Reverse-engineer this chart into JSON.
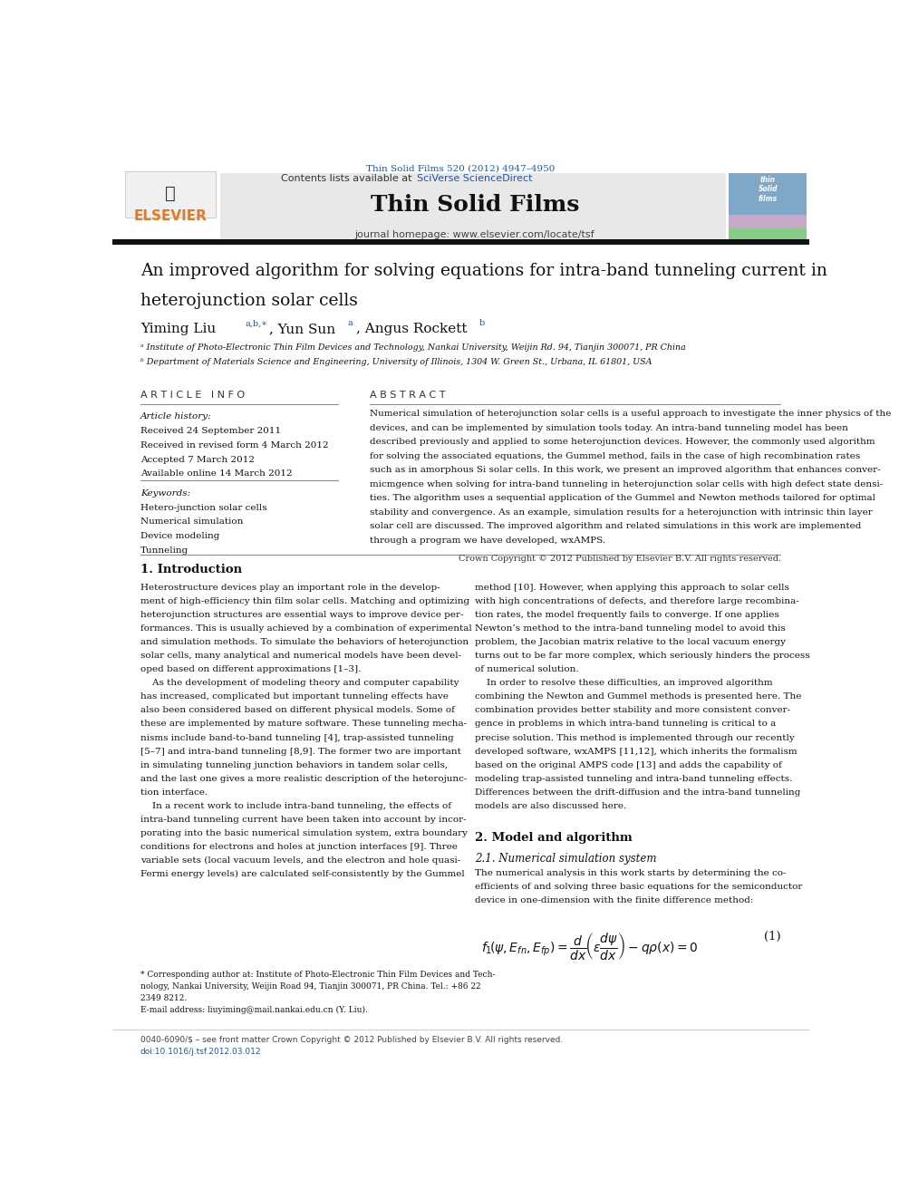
{
  "page_width": 9.92,
  "page_height": 13.23,
  "bg_color": "#ffffff",
  "top_journal_ref": "Thin Solid Films 520 (2012) 4947–4950",
  "journal_name": "Thin Solid Films",
  "journal_homepage": "journal homepage: www.elsevier.com/locate/tsf",
  "contents_line": "Contents lists available at SciVerse ScienceDirect",
  "elsevier_text": "ELSEVIER",
  "elsevier_color": "#e87722",
  "link_color": "#2255aa",
  "title_line1": "An improved algorithm for solving equations for intra-band tunneling current in",
  "title_line2": "heterojunction solar cells",
  "affil_a": "ᵃ Institute of Photo-Electronic Thin Film Devices and Technology, Nankai University, Weijin Rd. 94, Tianjin 300071, PR China",
  "affil_b": "ᵇ Department of Materials Science and Engineering, University of Illinois, 1304 W. Green St., Urbana, IL 61801, USA",
  "article_info_header": "A R T I C L E   I N F O",
  "abstract_header": "A B S T R A C T",
  "article_history_label": "Article history:",
  "received1": "Received 24 September 2011",
  "received2": "Received in revised form 4 March 2012",
  "accepted": "Accepted 7 March 2012",
  "available": "Available online 14 March 2012",
  "keywords_label": "Keywords:",
  "keyword1": "Hetero-junction solar cells",
  "keyword2": "Numerical simulation",
  "keyword3": "Device modeling",
  "keyword4": "Tunneling",
  "copyright": "Crown Copyright © 2012 Published by Elsevier B.V. All rights reserved.",
  "intro_header": "1. Introduction",
  "section2_header": "2. Model and algorithm",
  "section21_header": "2.1. Numerical simulation system",
  "footer1": "0040-6090/$ – see front matter Crown Copyright © 2012 Published by Elsevier B.V. All rights reserved.",
  "footer2": "doi:10.1016/j.tsf.2012.03.012",
  "header_bg": "#e8e8e8",
  "thin_films_cover_blue": "#7fa8c8",
  "thin_films_cover_purple": "#c8a8c8",
  "thin_films_cover_green": "#88cc88",
  "abstract_lines": [
    "Numerical simulation of heterojunction solar cells is a useful approach to investigate the inner physics of the",
    "devices, and can be implemented by simulation tools today. An intra-band tunneling model has been",
    "described previously and applied to some heterojunction devices. However, the commonly used algorithm",
    "for solving the associated equations, the Gummel method, fails in the case of high recombination rates",
    "such as in amorphous Si solar cells. In this work, we present an improved algorithm that enhances conver-",
    "micmgence when solving for intra-band tunneling in heterojunction solar cells with high defect state densi-",
    "ties. The algorithm uses a sequential application of the Gummel and Newton methods tailored for optimal",
    "stability and convergence. As an example, simulation results for a heterojunction with intrinsic thin layer",
    "solar cell are discussed. The improved algorithm and related simulations in this work are implemented",
    "through a program we have developed, wxAMPS."
  ],
  "col1_lines": [
    "Heterostructure devices play an important role in the develop-",
    "ment of high-efficiency thin film solar cells. Matching and optimizing",
    "heterojunction structures are essential ways to improve device per-",
    "formances. This is usually achieved by a combination of experimental",
    "and simulation methods. To simulate the behaviors of heterojunction",
    "solar cells, many analytical and numerical models have been devel-",
    "oped based on different approximations [1–3].",
    "    As the development of modeling theory and computer capability",
    "has increased, complicated but important tunneling effects have",
    "also been considered based on different physical models. Some of",
    "these are implemented by mature software. These tunneling mecha-",
    "nisms include band-to-band tunneling [4], trap-assisted tunneling",
    "[5–7] and intra-band tunneling [8,9]. The former two are important",
    "in simulating tunneling junction behaviors in tandem solar cells,",
    "and the last one gives a more realistic description of the heterojunc-",
    "tion interface.",
    "    In a recent work to include intra-band tunneling, the effects of",
    "intra-band tunneling current have been taken into account by incor-",
    "porating into the basic numerical simulation system, extra boundary",
    "conditions for electrons and holes at junction interfaces [9]. Three",
    "variable sets (local vacuum levels, and the electron and hole quasi-",
    "Fermi energy levels) are calculated self-consistently by the Gummel"
  ],
  "col2_lines": [
    "method [10]. However, when applying this approach to solar cells",
    "with high concentrations of defects, and therefore large recombina-",
    "tion rates, the model frequently fails to converge. If one applies",
    "Newton’s method to the intra-band tunneling model to avoid this",
    "problem, the Jacobian matrix relative to the local vacuum energy",
    "turns out to be far more complex, which seriously hinders the process",
    "of numerical solution.",
    "    In order to resolve these difficulties, an improved algorithm",
    "combining the Newton and Gummel methods is presented here. The",
    "combination provides better stability and more consistent conver-",
    "gence in problems in which intra-band tunneling is critical to a",
    "precise solution. This method is implemented through our recently",
    "developed software, wxAMPS [11,12], which inherits the formalism",
    "based on the original AMPS code [13] and adds the capability of",
    "modeling trap-assisted tunneling and intra-band tunneling effects.",
    "Differences between the drift-diffusion and the intra-band tunneling",
    "models are also discussed here."
  ],
  "sec21_lines": [
    "The numerical analysis in this work starts by determining the co-",
    "efficients of and solving three basic equations for the semiconductor",
    "device in one-dimension with the finite difference method:"
  ],
  "footnote_lines": [
    "* Corresponding author at: Institute of Photo-Electronic Thin Film Devices and Tech-",
    "nology, Nankai University, Weijin Road 94, Tianjin 300071, PR China. Tel.: +86 22",
    "2349 8212.",
    "E-mail address: liuyiming@mail.nankai.edu.cn (Y. Liu)."
  ]
}
